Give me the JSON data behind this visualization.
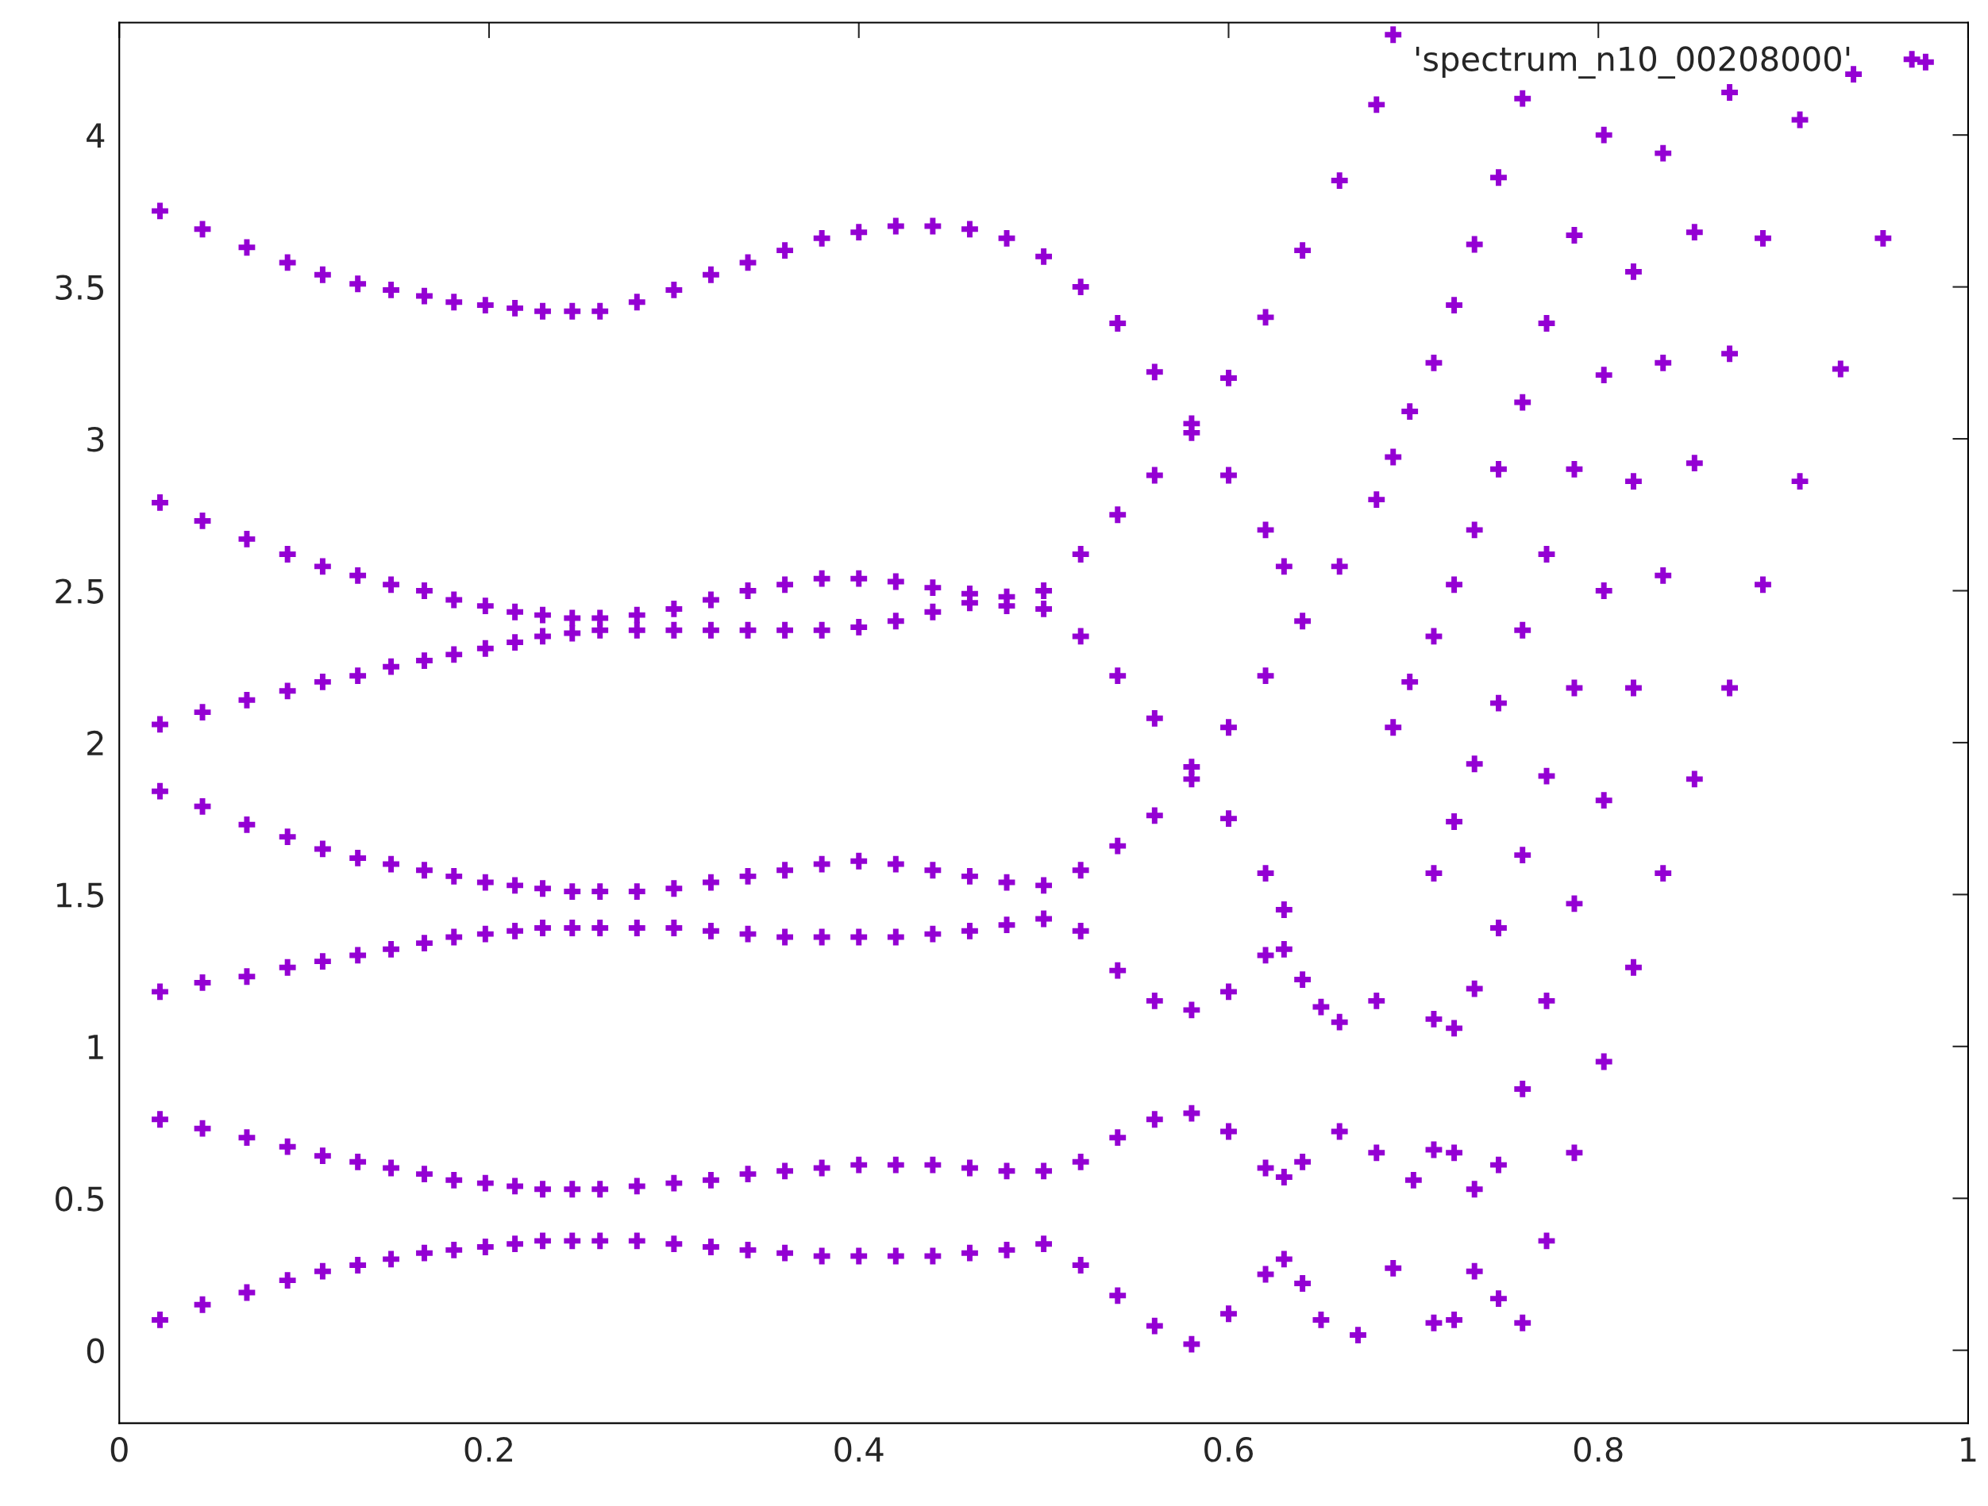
{
  "chart_data": {
    "type": "scatter",
    "xlim": [
      0,
      1
    ],
    "ylim": [
      -0.24,
      4.37
    ],
    "xticks": [
      0,
      0.2,
      0.4,
      0.6,
      0.8,
      1
    ],
    "yticks": [
      0,
      0.5,
      1,
      1.5,
      2,
      2.5,
      3,
      3.5,
      4
    ],
    "grid": false,
    "legend": "top right",
    "marker": "cross",
    "series": [
      {
        "name": "'spectrum_n10_00208000'",
        "color": "#9400d3",
        "x": [
          0.022,
          0.045,
          0.069,
          0.091,
          0.11,
          0.129,
          0.147,
          0.165,
          0.181,
          0.198,
          0.214,
          0.229,
          0.245,
          0.26,
          0.28,
          0.3,
          0.32,
          0.34,
          0.36,
          0.38,
          0.4,
          0.42,
          0.44,
          0.46,
          0.48,
          0.5,
          0.52,
          0.54,
          0.56,
          0.58,
          0.6,
          0.62,
          0.63
        ],
        "values": [
          3.75,
          3.69,
          3.63,
          3.58,
          3.54,
          3.51,
          3.49,
          3.47,
          3.45,
          3.44,
          3.43,
          3.42,
          3.42,
          3.42,
          3.45,
          3.49,
          3.54,
          3.58,
          3.62,
          3.66,
          3.68,
          3.7,
          3.7,
          3.69,
          3.66,
          3.6,
          3.5,
          3.38,
          3.22,
          3.05,
          2.88,
          2.7,
          2.58
        ]
      },
      {
        "color": "#9400d3",
        "x": [
          0.022,
          0.045,
          0.069,
          0.091,
          0.11,
          0.129,
          0.147,
          0.165,
          0.181,
          0.198,
          0.214,
          0.229,
          0.245,
          0.26,
          0.28,
          0.3,
          0.32,
          0.34,
          0.36,
          0.38,
          0.4,
          0.42,
          0.44,
          0.46,
          0.48,
          0.5,
          0.52,
          0.54,
          0.56,
          0.58,
          0.6,
          0.62,
          0.64,
          0.66,
          0.68
        ],
        "values": [
          2.79,
          2.73,
          2.67,
          2.62,
          2.58,
          2.55,
          2.52,
          2.5,
          2.47,
          2.45,
          2.43,
          2.42,
          2.41,
          2.41,
          2.42,
          2.44,
          2.47,
          2.5,
          2.52,
          2.54,
          2.54,
          2.53,
          2.51,
          2.49,
          2.48,
          2.5,
          2.62,
          2.75,
          2.88,
          3.02,
          3.2,
          3.4,
          3.62,
          3.85,
          4.1
        ]
      },
      {
        "color": "#9400d3",
        "x": [
          0.022,
          0.045,
          0.069,
          0.091,
          0.11,
          0.129,
          0.147,
          0.165,
          0.181,
          0.198,
          0.214,
          0.229,
          0.245,
          0.26,
          0.28,
          0.3,
          0.32,
          0.34,
          0.36,
          0.38,
          0.4,
          0.42,
          0.44,
          0.46,
          0.48,
          0.5,
          0.52,
          0.54,
          0.56,
          0.58,
          0.6,
          0.62,
          0.63
        ],
        "values": [
          2.06,
          2.1,
          2.14,
          2.17,
          2.2,
          2.22,
          2.25,
          2.27,
          2.29,
          2.31,
          2.33,
          2.35,
          2.36,
          2.37,
          2.37,
          2.37,
          2.37,
          2.37,
          2.37,
          2.37,
          2.38,
          2.4,
          2.43,
          2.46,
          2.45,
          2.44,
          2.35,
          2.22,
          2.08,
          1.92,
          1.75,
          1.57,
          1.45
        ]
      },
      {
        "color": "#9400d3",
        "x": [
          0.022,
          0.045,
          0.069,
          0.091,
          0.11,
          0.129,
          0.147,
          0.165,
          0.181,
          0.198,
          0.214,
          0.229,
          0.245,
          0.26,
          0.28,
          0.3,
          0.32,
          0.34,
          0.36,
          0.38,
          0.4,
          0.42,
          0.44,
          0.46,
          0.48,
          0.5,
          0.52,
          0.54,
          0.56,
          0.58,
          0.6,
          0.62,
          0.64,
          0.66,
          0.68
        ],
        "values": [
          1.84,
          1.79,
          1.73,
          1.69,
          1.65,
          1.62,
          1.6,
          1.58,
          1.56,
          1.54,
          1.53,
          1.52,
          1.51,
          1.51,
          1.51,
          1.52,
          1.54,
          1.56,
          1.58,
          1.6,
          1.61,
          1.6,
          1.58,
          1.56,
          1.54,
          1.53,
          1.58,
          1.66,
          1.76,
          1.88,
          2.05,
          2.22,
          2.4,
          2.58,
          2.8
        ]
      },
      {
        "color": "#9400d3",
        "x": [
          0.022,
          0.045,
          0.069,
          0.091,
          0.11,
          0.129,
          0.147,
          0.165,
          0.181,
          0.198,
          0.214,
          0.229,
          0.245,
          0.26,
          0.28,
          0.3,
          0.32,
          0.34,
          0.36,
          0.38,
          0.4,
          0.42,
          0.44,
          0.46,
          0.48,
          0.5,
          0.52,
          0.54,
          0.56,
          0.58,
          0.6,
          0.62,
          0.63,
          0.64,
          0.65,
          0.66,
          0.68
        ],
        "values": [
          1.18,
          1.21,
          1.23,
          1.26,
          1.28,
          1.3,
          1.32,
          1.34,
          1.36,
          1.37,
          1.38,
          1.39,
          1.39,
          1.39,
          1.39,
          1.39,
          1.38,
          1.37,
          1.36,
          1.36,
          1.36,
          1.36,
          1.37,
          1.38,
          1.4,
          1.42,
          1.38,
          1.25,
          1.15,
          1.12,
          1.18,
          1.3,
          1.32,
          1.22,
          1.13,
          1.08,
          1.15
        ]
      },
      {
        "color": "#9400d3",
        "x": [
          0.022,
          0.045,
          0.069,
          0.091,
          0.11,
          0.129,
          0.147,
          0.165,
          0.181,
          0.198,
          0.214,
          0.229,
          0.245,
          0.26,
          0.28,
          0.3,
          0.32,
          0.34,
          0.36,
          0.38,
          0.4,
          0.42,
          0.44,
          0.46,
          0.48,
          0.5,
          0.52,
          0.54,
          0.56,
          0.58,
          0.6,
          0.62,
          0.63,
          0.64,
          0.66,
          0.68,
          0.7
        ],
        "values": [
          0.76,
          0.73,
          0.7,
          0.67,
          0.64,
          0.62,
          0.6,
          0.58,
          0.56,
          0.55,
          0.54,
          0.53,
          0.53,
          0.53,
          0.54,
          0.55,
          0.56,
          0.58,
          0.59,
          0.6,
          0.61,
          0.61,
          0.61,
          0.6,
          0.59,
          0.59,
          0.62,
          0.7,
          0.76,
          0.78,
          0.72,
          0.6,
          0.57,
          0.62,
          0.72,
          0.65,
          0.56
        ]
      },
      {
        "color": "#9400d3",
        "x": [
          0.022,
          0.045,
          0.069,
          0.091,
          0.11,
          0.129,
          0.147,
          0.165,
          0.181,
          0.198,
          0.214,
          0.229,
          0.245,
          0.26,
          0.28,
          0.3,
          0.32,
          0.34,
          0.36,
          0.38,
          0.4,
          0.42,
          0.44,
          0.46,
          0.48,
          0.5,
          0.52,
          0.54,
          0.56,
          0.58,
          0.6,
          0.62,
          0.63,
          0.64,
          0.65,
          0.67
        ],
        "values": [
          0.1,
          0.15,
          0.19,
          0.23,
          0.26,
          0.28,
          0.3,
          0.32,
          0.33,
          0.34,
          0.35,
          0.36,
          0.36,
          0.36,
          0.36,
          0.35,
          0.34,
          0.33,
          0.32,
          0.31,
          0.31,
          0.31,
          0.31,
          0.32,
          0.33,
          0.35,
          0.28,
          0.18,
          0.08,
          0.02,
          0.12,
          0.25,
          0.3,
          0.22,
          0.1,
          0.05
        ]
      },
      {
        "color": "#9400d3",
        "x": [
          0.689,
          0.759,
          0.803,
          0.835,
          0.871,
          0.909,
          0.938,
          0.977,
          0.746,
          0.733,
          0.787,
          0.819,
          0.852,
          0.889,
          0.954,
          0.722,
          0.772,
          0.711,
          0.759,
          0.803,
          0.835,
          0.871,
          0.931,
          0.698,
          0.689,
          0.746,
          0.787,
          0.819,
          0.852,
          0.909,
          0.733,
          0.772,
          0.722,
          0.803,
          0.835,
          0.889,
          0.711,
          0.759,
          0.698,
          0.746,
          0.787,
          0.819,
          0.871,
          0.689,
          0.733,
          0.772,
          0.852,
          0.803,
          0.722,
          0.759,
          0.711,
          0.835,
          0.787,
          0.746,
          0.733,
          0.819,
          0.772,
          0.711,
          0.722,
          0.803,
          0.759,
          0.711,
          0.722,
          0.787,
          0.746,
          0.733,
          0.772,
          0.733,
          0.746,
          0.711,
          0.722,
          0.759,
          0.689
        ],
        "values": [
          4.33,
          4.12,
          4.0,
          3.94,
          4.14,
          4.05,
          4.2,
          4.24,
          3.86,
          3.64,
          3.67,
          3.55,
          3.68,
          3.66,
          3.66,
          3.44,
          3.38,
          3.25,
          3.12,
          3.21,
          3.25,
          3.28,
          3.23,
          3.09,
          2.94,
          2.9,
          2.9,
          2.86,
          2.92,
          2.86,
          2.7,
          2.62,
          2.52,
          2.5,
          2.55,
          2.52,
          2.35,
          2.37,
          2.2,
          2.13,
          2.18,
          2.18,
          2.18,
          2.05,
          1.93,
          1.89,
          1.88,
          1.81,
          1.74,
          1.63,
          1.57,
          1.57,
          1.47,
          1.39,
          1.19,
          1.26,
          1.15,
          1.09,
          1.06,
          0.95,
          0.86,
          0.66,
          0.65,
          0.65,
          0.61,
          0.53,
          0.36,
          0.26,
          0.17,
          0.09,
          0.1,
          0.09,
          0.27
        ]
      }
    ]
  }
}
